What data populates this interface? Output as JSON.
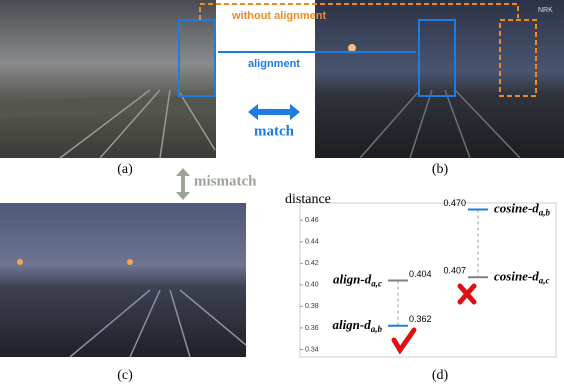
{
  "panels": {
    "a": "(a)",
    "b": "(b)",
    "c": "(c)",
    "d": "(d)"
  },
  "annotations": {
    "without_alignment": "without alignment",
    "alignment": "alignment",
    "match": "match",
    "mismatch": "mismatch",
    "watermark": "NRK"
  },
  "chart_data": {
    "type": "range",
    "y_label": "distance",
    "ylim": [
      0.333,
      0.476
    ],
    "yticks": [
      0.34,
      0.36,
      0.38,
      {
        "value": 0.4,
        "label": "0.40"
      },
      0.42,
      0.44,
      0.46
    ],
    "groups": [
      {
        "labels": [
          {
            "text": "align-d",
            "sub": "a,c"
          },
          {
            "text": "align-d",
            "sub": "a,b"
          }
        ],
        "values": [
          0.404,
          0.362
        ],
        "value_labels": [
          "0.404",
          "0.362"
        ],
        "colors": [
          "#808080",
          "#1e7be0"
        ]
      },
      {
        "labels": [
          {
            "text": "cosine-d",
            "sub": "a,b"
          },
          {
            "text": "cosine-d",
            "sub": "a,c"
          }
        ],
        "values": [
          0.47,
          0.407
        ],
        "value_labels": [
          "0.470",
          "0.407"
        ],
        "colors": [
          "#1e7be0",
          "#808080"
        ]
      }
    ]
  }
}
